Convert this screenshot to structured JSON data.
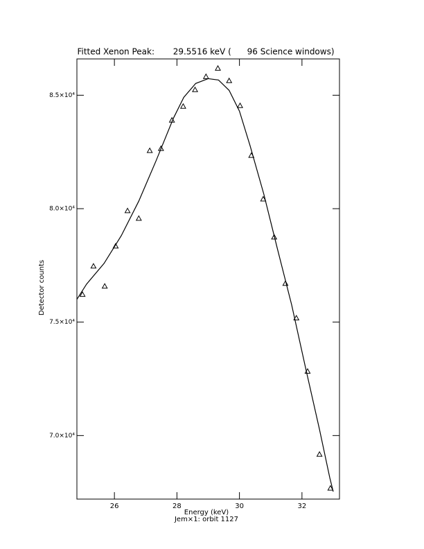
{
  "chart_data": {
    "type": "scatter",
    "title": "Fitted Xenon Peak:       29.5516 keV (      96 Science windows)",
    "x_label": "Energy (keV)",
    "x_sublabel": "Jem×1: orbit 1127",
    "y_label": "Detector counts",
    "xlim": [
      24.8,
      33.2
    ],
    "ylim": [
      67200,
      86600
    ],
    "xticks": [
      26,
      28,
      30,
      32
    ],
    "yticks": [
      {
        "value": 70000,
        "label": "7.0×10⁴"
      },
      {
        "value": 75000,
        "label": "7.5×10⁴"
      },
      {
        "value": 80000,
        "label": "8.0×10⁴"
      },
      {
        "value": 85000,
        "label": "8.5×10⁴"
      }
    ],
    "series": [
      {
        "style": "markers",
        "color": "#000000",
        "x": [
          24.98,
          25.33,
          25.69,
          26.04,
          26.42,
          26.78,
          27.13,
          27.49,
          27.84,
          28.2,
          28.58,
          28.93,
          29.31,
          29.67,
          30.02,
          30.38,
          30.76,
          31.11,
          31.47,
          31.82,
          32.18,
          32.56,
          32.91
        ],
        "values": [
          76219,
          77468,
          76584,
          78353,
          79908,
          79572,
          82560,
          82652,
          83902,
          84512,
          85243,
          85823,
          86189,
          85640,
          84542,
          82347,
          80426,
          78749,
          76706,
          75181,
          72834,
          69176,
          67681
        ]
      },
      {
        "style": "line",
        "color": "#000000",
        "x": [
          24.8,
          25.11,
          25.67,
          26.22,
          26.78,
          27.33,
          27.89,
          28.22,
          28.6,
          29.0,
          29.33,
          29.67,
          30.0,
          30.34,
          30.78,
          31.22,
          31.67,
          32.11,
          32.56,
          32.89,
          33.0
        ],
        "values": [
          76005,
          76676,
          77590,
          78810,
          80335,
          82103,
          83994,
          84908,
          85518,
          85731,
          85670,
          85213,
          84298,
          82774,
          80639,
          78200,
          75761,
          73017,
          70273,
          68139,
          67529
        ]
      }
    ]
  }
}
